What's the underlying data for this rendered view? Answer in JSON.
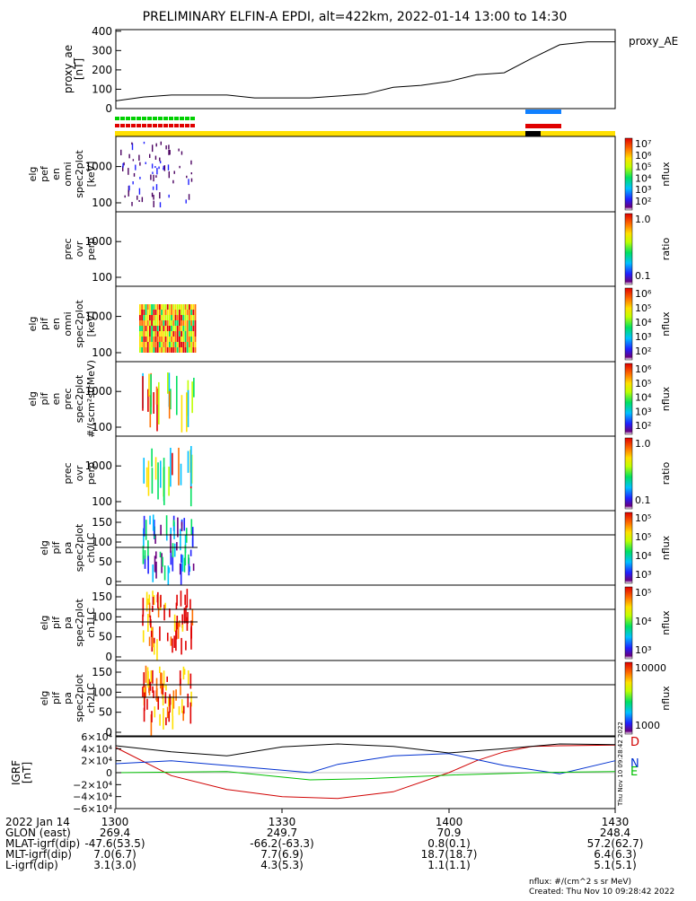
{
  "title": "PRELIMINARY ELFIN-A EPDI, alt=422km, 2022-01-14 13:00 to 14:30",
  "colors": {
    "green_bar": "#00d000",
    "red_bar": "#e00000",
    "blue_bar": "#1080ff",
    "yellow_bar": "#ffe000",
    "igrf_x": "#d00000",
    "igrf_y": "#0030d0",
    "igrf_z": "#00c000",
    "igrf_total": "#000000"
  },
  "panels": {
    "ae": {
      "ylabel": [
        "proxy_ae",
        "[nT]"
      ],
      "yticks": [
        "400",
        "300",
        "200",
        "100",
        "0"
      ],
      "legend": "proxy_AE"
    },
    "p1": {
      "ylabel": [
        "elg",
        "pef",
        "en",
        "omni",
        "spec2plot",
        "[keV]"
      ],
      "yticks": [
        "1000",
        "100"
      ],
      "cbar_ticks": [
        "10⁷",
        "10⁶",
        "10⁵",
        "10⁴",
        "10³",
        "10²"
      ],
      "cbar_label": "nflux"
    },
    "p2": {
      "ylabel": [
        "prec",
        "ovr",
        "perp"
      ],
      "yticks": [
        "1000",
        "100"
      ],
      "cbar_ticks": [
        "1.0",
        "0.1"
      ],
      "cbar_label": "ratio"
    },
    "p3": {
      "ylabel": [
        "elg",
        "pif",
        "en",
        "omni",
        "spec2plot",
        "[keV]"
      ],
      "yticks": [
        "1000",
        "100"
      ],
      "cbar_ticks": [
        "10⁶",
        "10⁵",
        "10⁴",
        "10³",
        "10²"
      ],
      "cbar_label": "nflux"
    },
    "p4": {
      "ylabel": [
        "elg",
        "pif",
        "en",
        "prec",
        "spec2plot",
        "#/(scm²strMeV)"
      ],
      "yticks": [
        "1000",
        "100"
      ],
      "cbar_ticks": [
        "10⁶",
        "10⁵",
        "10⁴",
        "10³",
        "10²"
      ],
      "cbar_label": "nflux"
    },
    "p5": {
      "ylabel": [
        "prec",
        "ovr",
        "perp"
      ],
      "yticks": [
        "1000",
        "100"
      ],
      "cbar_ticks": [
        "1.0",
        "0.1"
      ],
      "cbar_label": "ratio"
    },
    "p6": {
      "ylabel": [
        "elg",
        "pif",
        "pa",
        "spec2plot",
        "ch0LC"
      ],
      "yticks": [
        "150",
        "100",
        "50",
        "0"
      ],
      "cbar_ticks": [
        "10⁵",
        "10⁵",
        "10⁴",
        "10³"
      ],
      "cbar_label": "nflux"
    },
    "p7": {
      "ylabel": [
        "elg",
        "pif",
        "pa",
        "spec2plot",
        "ch1LC"
      ],
      "yticks": [
        "150",
        "100",
        "50",
        "0"
      ],
      "cbar_ticks": [
        "10⁵",
        "10⁴",
        "10³"
      ],
      "cbar_label": "nflux"
    },
    "p8": {
      "ylabel": [
        "elg",
        "pif",
        "pa",
        "spec2plot",
        "ch2LC"
      ],
      "yticks": [
        "150",
        "100",
        "50",
        "0"
      ],
      "cbar_ticks": [
        "10000",
        "1000"
      ],
      "cbar_label": "nflux"
    },
    "igrf": {
      "ylabel": [
        "IGRF",
        "[nT]"
      ],
      "yticks": [
        "6×10⁴",
        "4×10⁴",
        "2×10⁴",
        "0",
        "−2×10⁴",
        "−4×10⁴",
        "−6×10⁴"
      ],
      "legend": [
        "D",
        "N",
        "E"
      ],
      "side_stamp": "Thu Nov 10 09:28:42 2022"
    }
  },
  "ephemeris": {
    "labels": [
      "2022 Jan 14",
      "GLON (east)",
      "MLAT-igrf(dip)",
      "MLT-igrf(dip)",
      "L-igrf(dip)"
    ],
    "columns": [
      [
        "1300",
        "269.4",
        "-47.6(53.5)",
        "7.0(6.7)",
        "3.1(3.0)"
      ],
      [
        "1330",
        "249.7",
        "-66.2(-63.3)",
        "7.7(6.9)",
        "4.3(5.3)"
      ],
      [
        "1400",
        "70.9",
        "0.8(0.1)",
        "18.7(18.7)",
        "1.1(1.1)"
      ],
      [
        "1430",
        "248.4",
        "57.2(62.7)",
        "6.4(6.3)",
        "5.1(5.1)"
      ]
    ]
  },
  "footer": {
    "line1": "nflux: #/(cm^2 s sr MeV)",
    "line2": "Created: Thu Nov 10 09:28:42 2022"
  },
  "chart_data": [
    {
      "type": "line",
      "series": [
        {
          "name": "proxy_AE",
          "x": [
            "13:00",
            "13:05",
            "13:10",
            "13:15",
            "13:20",
            "13:25",
            "13:30",
            "13:35",
            "13:40",
            "13:45",
            "13:50",
            "13:55",
            "14:00",
            "14:05",
            "14:10",
            "14:15",
            "14:20",
            "14:25",
            "14:30"
          ],
          "values": [
            40,
            60,
            70,
            70,
            70,
            55,
            55,
            55,
            65,
            75,
            110,
            120,
            140,
            175,
            185,
            260,
            330,
            345,
            345
          ]
        }
      ],
      "ylim": [
        0,
        400
      ]
    },
    {
      "type": "line",
      "series": [
        {
          "name": "D",
          "x": [
            "13:00",
            "13:10",
            "13:20",
            "13:30",
            "13:40",
            "13:50",
            "14:00",
            "14:05",
            "14:10",
            "14:15",
            "14:20",
            "14:30"
          ],
          "values": [
            42000,
            -5000,
            -28000,
            -40000,
            -43000,
            -32000,
            0,
            20000,
            35000,
            44000,
            45000,
            46000
          ]
        },
        {
          "name": "N",
          "x": [
            "13:00",
            "13:10",
            "13:20",
            "13:30",
            "13:35",
            "13:40",
            "13:50",
            "14:00",
            "14:10",
            "14:20",
            "14:30"
          ],
          "values": [
            15000,
            20000,
            12000,
            4000,
            0,
            14000,
            28000,
            32000,
            12000,
            -2000,
            20000
          ]
        },
        {
          "name": "E",
          "x": [
            "13:00",
            "13:20",
            "13:35",
            "13:45",
            "14:00",
            "14:15",
            "14:30"
          ],
          "values": [
            0,
            2000,
            -12000,
            -10000,
            -4000,
            0,
            2000
          ]
        },
        {
          "name": "",
          "x": [
            "13:00",
            "13:10",
            "13:20",
            "13:30",
            "13:40",
            "13:50",
            "14:00",
            "14:10",
            "14:20",
            "14:30"
          ],
          "values": [
            45000,
            35000,
            28000,
            43000,
            48000,
            44000,
            33000,
            40000,
            48000,
            47000
          ]
        }
      ],
      "ylim": [
        -60000,
        60000
      ]
    }
  ]
}
